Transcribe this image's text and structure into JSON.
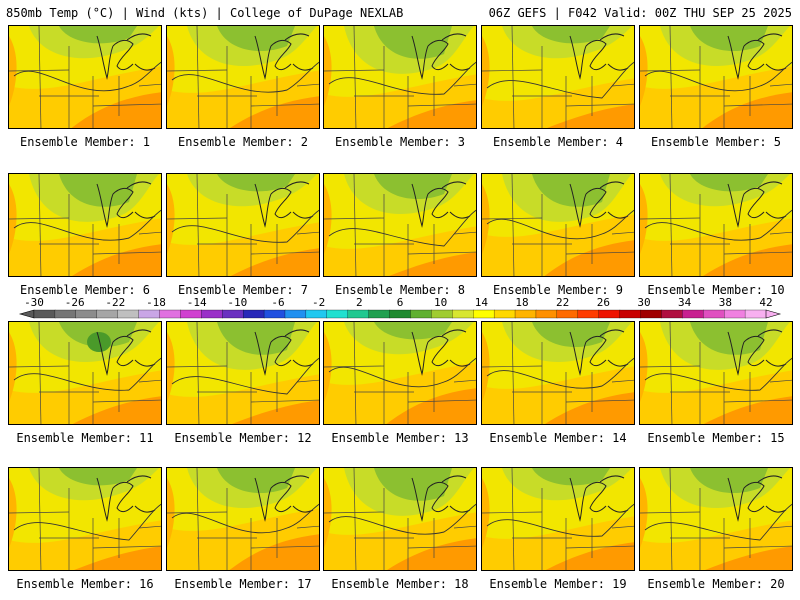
{
  "header": {
    "left": "850mb Temp (°C) | Wind (kts) | College of DuPage NEXLAB",
    "right": "06Z GEFS | F042 Valid: 00Z THU SEP 25 2025"
  },
  "panels": [
    {
      "label": "Ensemble Member: 1"
    },
    {
      "label": "Ensemble Member: 2"
    },
    {
      "label": "Ensemble Member: 3"
    },
    {
      "label": "Ensemble Member: 4"
    },
    {
      "label": "Ensemble Member: 5"
    },
    {
      "label": "Ensemble Member: 6"
    },
    {
      "label": "Ensemble Member: 7"
    },
    {
      "label": "Ensemble Member: 8"
    },
    {
      "label": "Ensemble Member: 9"
    },
    {
      "label": "Ensemble Member: 10"
    },
    {
      "label": "Ensemble Member: 11"
    },
    {
      "label": "Ensemble Member: 12"
    },
    {
      "label": "Ensemble Member: 13"
    },
    {
      "label": "Ensemble Member: 14"
    },
    {
      "label": "Ensemble Member: 15"
    },
    {
      "label": "Ensemble Member: 16"
    },
    {
      "label": "Ensemble Member: 17"
    },
    {
      "label": "Ensemble Member: 18"
    },
    {
      "label": "Ensemble Member: 19"
    },
    {
      "label": "Ensemble Member: 20"
    }
  ],
  "colorbar": {
    "labels": [
      "-30",
      "-26",
      "-22",
      "-18",
      "-14",
      "-10",
      "-6",
      "-2",
      "2",
      "6",
      "10",
      "14",
      "18",
      "22",
      "26",
      "30",
      "34",
      "38",
      "42"
    ],
    "colors": [
      "#5a5a5a",
      "#767676",
      "#8c8c8c",
      "#a6a6a6",
      "#bfbfbf",
      "#c9a6e6",
      "#e070e0",
      "#d040d0",
      "#9a30c8",
      "#6a30c0",
      "#2828b8",
      "#2050e0",
      "#2090f0",
      "#20c8f0",
      "#20e0d0",
      "#20c890",
      "#20a050",
      "#208a30",
      "#60b030",
      "#a0cc30",
      "#d8e630",
      "#ffff00",
      "#ffd800",
      "#ffb400",
      "#ff9000",
      "#ff6a00",
      "#ff3c00",
      "#ee1400",
      "#c80000",
      "#a00000",
      "#b01040",
      "#c82090",
      "#e050c0",
      "#f080e0",
      "#f8b0f0"
    ]
  }
}
